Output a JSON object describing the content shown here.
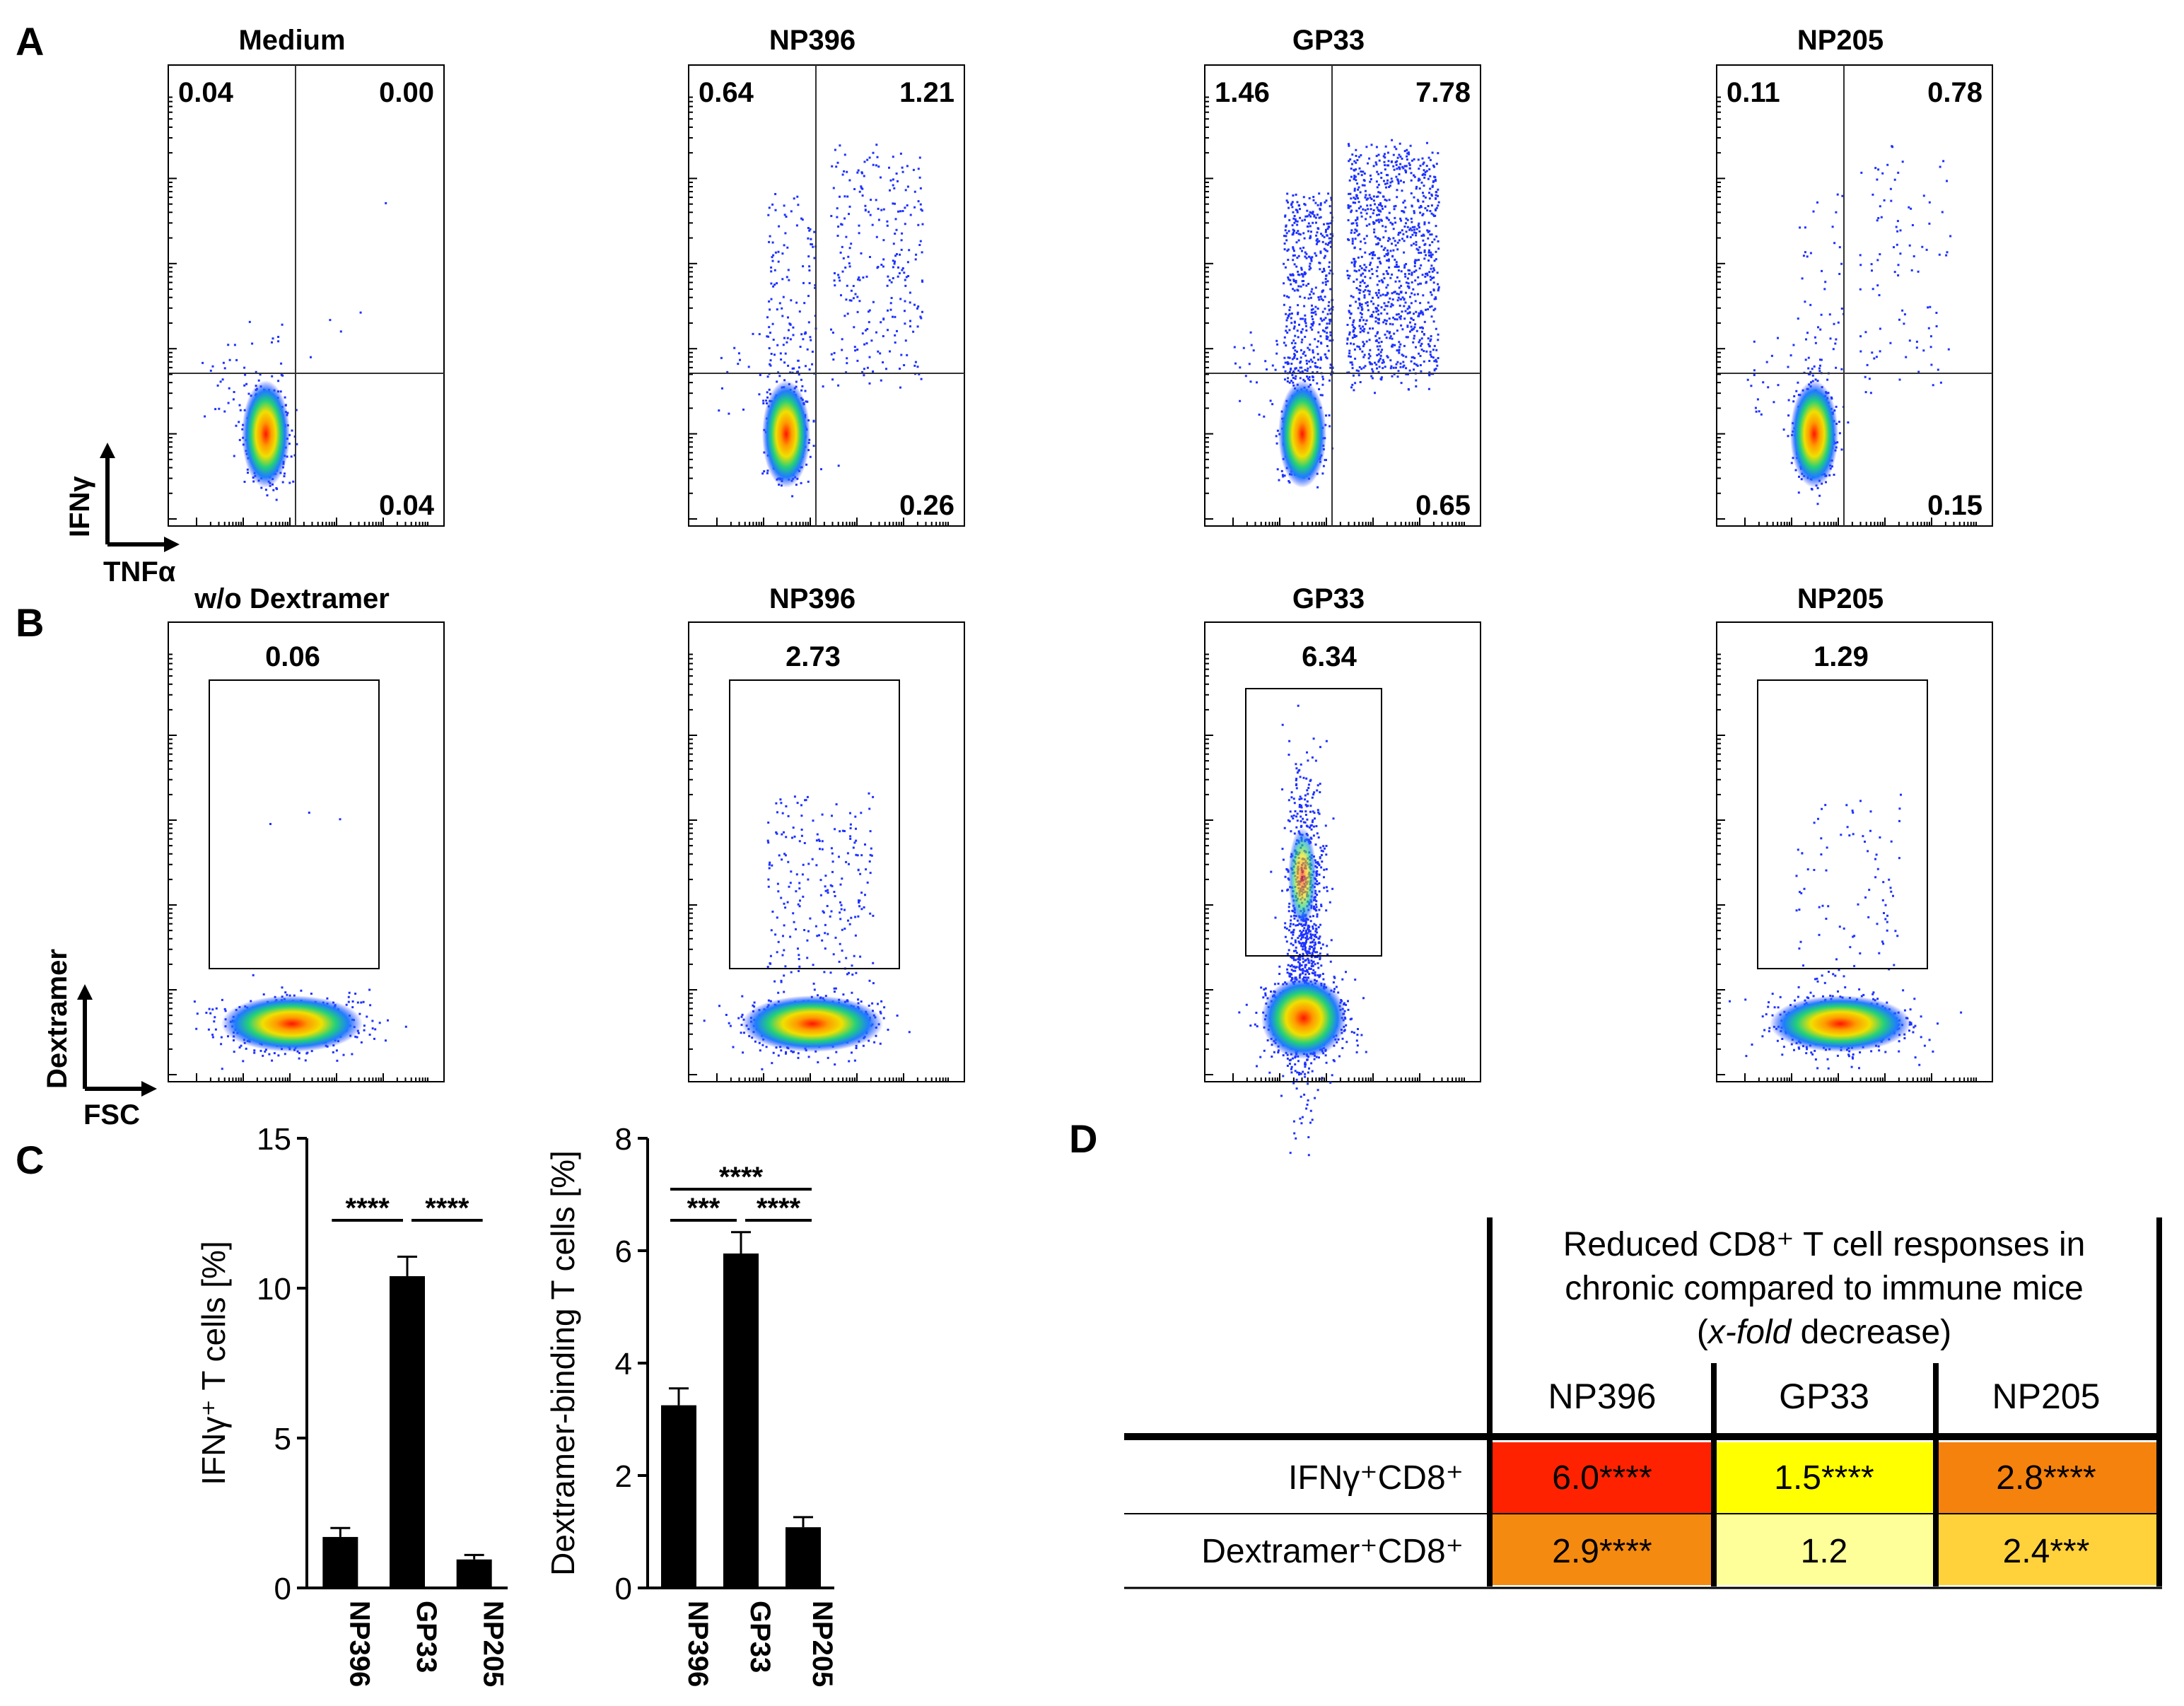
{
  "colors": {
    "dot": "#1e32ff",
    "hot": "#ff2200",
    "warm": "#ff8c00",
    "mid": "#ffe600",
    "cool": "#22cc66"
  },
  "panel_a": {
    "letter": "A",
    "y_axis_label": "IFNγ",
    "x_axis_label": "TNFα",
    "plots": [
      {
        "title": "Medium",
        "q_upper_left": "0.04",
        "q_upper_right": "0.00",
        "q_lower_right": "0.04"
      },
      {
        "title": "NP396",
        "q_upper_left": "0.64",
        "q_upper_right": "1.21",
        "q_lower_right": "0.26"
      },
      {
        "title": "GP33",
        "q_upper_left": "1.46",
        "q_upper_right": "7.78",
        "q_lower_right": "0.65"
      },
      {
        "title": "NP205",
        "q_upper_left": "0.11",
        "q_upper_right": "0.78",
        "q_lower_right": "0.15"
      }
    ]
  },
  "panel_b": {
    "letter": "B",
    "y_axis_label": "Dextramer",
    "x_axis_label": "FSC",
    "plots": [
      {
        "title": "w/o Dextramer",
        "gate_value": "0.06"
      },
      {
        "title": "NP396",
        "gate_value": "2.73"
      },
      {
        "title": "GP33",
        "gate_value": "6.34"
      },
      {
        "title": "NP205",
        "gate_value": "1.29"
      }
    ]
  },
  "panel_c": {
    "letter": "C"
  },
  "panel_d": {
    "letter": "D",
    "heading_line1": "Reduced CD8⁺ T cell responses in",
    "heading_line2": "chronic compared to immune mice",
    "heading_open": "(",
    "heading_italic": "x-fold",
    "heading_rest": " decrease)",
    "columns": [
      "NP396",
      "GP33",
      "NP205"
    ],
    "rows": [
      {
        "label": "IFNγ⁺CD8⁺",
        "cells": [
          "6.0****",
          "1.5****",
          "2.8****"
        ],
        "colors": [
          "#ff2200",
          "#ffff00",
          "#f5820d"
        ]
      },
      {
        "label": "Dextramer⁺CD8⁺",
        "cells": [
          "2.9****",
          "1.2",
          "2.4***"
        ],
        "colors": [
          "#f58a10",
          "#ffff99",
          "#ffd23c"
        ]
      }
    ]
  },
  "chart_data": [
    {
      "type": "bar",
      "ylabel": "IFNγ⁺ T cells [%]",
      "categories": [
        "NP396",
        "GP33",
        "NP205"
      ],
      "values": [
        1.7,
        10.4,
        0.95
      ],
      "errors": [
        0.3,
        0.65,
        0.15
      ],
      "ylim": [
        0,
        15
      ],
      "yticks": [
        "0",
        "5",
        "10",
        "15"
      ],
      "significance": [
        {
          "from": 0,
          "to": 1,
          "label": "****"
        },
        {
          "from": 1,
          "to": 2,
          "label": "****"
        }
      ]
    },
    {
      "type": "bar",
      "ylabel": "Dextramer-binding T cells [%]",
      "categories": [
        "NP396",
        "GP33",
        "NP205"
      ],
      "values": [
        3.25,
        5.95,
        1.08
      ],
      "errors": [
        0.3,
        0.38,
        0.18
      ],
      "ylim": [
        0,
        8
      ],
      "yticks": [
        "0",
        "2",
        "4",
        "6",
        "8"
      ],
      "significance": [
        {
          "from": 0,
          "to": 2,
          "label": "****"
        },
        {
          "from": 0,
          "to": 1,
          "label": "***"
        },
        {
          "from": 1,
          "to": 2,
          "label": "****"
        }
      ]
    }
  ]
}
